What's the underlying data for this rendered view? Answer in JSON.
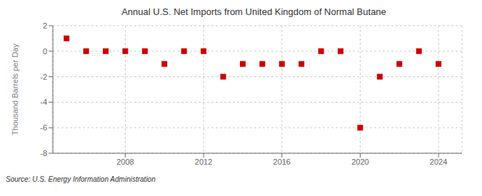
{
  "chart_data": {
    "type": "scatter",
    "title": "Annual U.S. Net Imports from United Kingdom of Normal Butane",
    "ylabel": "Thousand Barrels per Day",
    "annotation": "Source: U.S. Energy Information Administration",
    "x": [
      2005,
      2006,
      2007,
      2008,
      2009,
      2010,
      2011,
      2012,
      2013,
      2014,
      2015,
      2016,
      2017,
      2018,
      2019,
      2020,
      2021,
      2022,
      2023,
      2024
    ],
    "values": [
      1.0,
      0.0,
      0.0,
      0.0,
      0.0,
      -1.0,
      0.0,
      0.0,
      -2.0,
      -1.0,
      -1.0,
      -1.0,
      -1.0,
      0.0,
      0.0,
      -6.0,
      -2.0,
      -1.0,
      0.0,
      -1.0
    ],
    "color": "#cc0000",
    "marker": "square",
    "grid": true,
    "xlim": [
      2004.3,
      2025.2
    ],
    "xticks": [
      2008,
      2012,
      2016,
      2020,
      2024
    ],
    "ylim": [
      -8,
      2
    ],
    "yticks": [
      -8,
      -6,
      -4,
      -2,
      0,
      2
    ]
  }
}
